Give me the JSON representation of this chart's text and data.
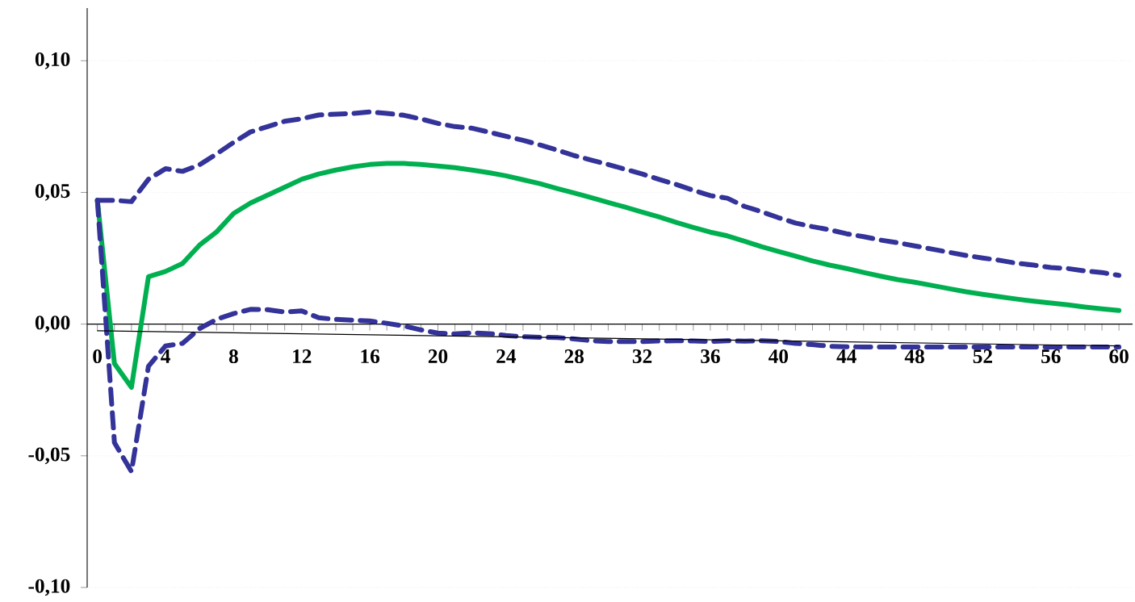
{
  "chart_data": {
    "type": "line",
    "x": [
      0,
      1,
      2,
      3,
      4,
      5,
      6,
      7,
      8,
      9,
      10,
      11,
      12,
      13,
      14,
      15,
      16,
      17,
      18,
      19,
      20,
      21,
      22,
      23,
      24,
      25,
      26,
      27,
      28,
      29,
      30,
      31,
      32,
      33,
      34,
      35,
      36,
      37,
      38,
      39,
      40,
      41,
      42,
      43,
      44,
      45,
      46,
      47,
      48,
      49,
      50,
      51,
      52,
      53,
      54,
      55,
      56,
      57,
      58,
      59,
      60
    ],
    "series": [
      {
        "color": "#00b050",
        "line_style": "solid",
        "values": [
          0.047,
          -0.015,
          -0.024,
          0.018,
          0.02,
          0.023,
          0.03,
          0.035,
          0.042,
          0.046,
          0.049,
          0.052,
          0.055,
          0.057,
          0.0585,
          0.0597,
          0.0606,
          0.061,
          0.061,
          0.0606,
          0.06,
          0.0594,
          0.0585,
          0.0575,
          0.0563,
          0.0548,
          0.0533,
          0.0515,
          0.0498,
          0.048,
          0.0462,
          0.0444,
          0.0425,
          0.0407,
          0.0386,
          0.0367,
          0.0349,
          0.0335,
          0.0315,
          0.0294,
          0.0276,
          0.0258,
          0.024,
          0.0224,
          0.0211,
          0.0196,
          0.0182,
          0.0169,
          0.0159,
          0.0147,
          0.0135,
          0.0123,
          0.0113,
          0.0104,
          0.0095,
          0.0087,
          0.008,
          0.0073,
          0.0065,
          0.0058,
          0.0052
        ]
      },
      {
        "color": "#333399",
        "line_style": "dashed",
        "values": [
          0.047,
          0.047,
          0.0465,
          0.055,
          0.059,
          0.058,
          0.0605,
          0.0646,
          0.069,
          0.073,
          0.075,
          0.077,
          0.078,
          0.0794,
          0.0797,
          0.08,
          0.0806,
          0.08,
          0.0793,
          0.0779,
          0.0762,
          0.075,
          0.0744,
          0.0729,
          0.0713,
          0.0698,
          0.068,
          0.0661,
          0.064,
          0.0623,
          0.0606,
          0.0588,
          0.057,
          0.0549,
          0.053,
          0.0508,
          0.0488,
          0.0478,
          0.0447,
          0.0427,
          0.0404,
          0.0384,
          0.037,
          0.0358,
          0.0343,
          0.0332,
          0.0319,
          0.0309,
          0.0297,
          0.0285,
          0.0273,
          0.0261,
          0.0251,
          0.0242,
          0.0231,
          0.0224,
          0.0215,
          0.0211,
          0.0202,
          0.0196,
          0.0185
        ]
      },
      {
        "color": "#333399",
        "line_style": "dashed",
        "values": [
          0.047,
          -0.045,
          -0.056,
          -0.016,
          -0.0083,
          -0.0073,
          -0.0017,
          0.0018,
          0.004,
          0.0056,
          0.0055,
          0.0046,
          0.005,
          0.0024,
          0.0018,
          0.0015,
          0.0012,
          0.0003,
          -0.0007,
          -0.0022,
          -0.0034,
          -0.0037,
          -0.0033,
          -0.0036,
          -0.0043,
          -0.0048,
          -0.005,
          -0.0051,
          -0.0056,
          -0.0063,
          -0.0066,
          -0.0066,
          -0.0066,
          -0.0064,
          -0.0063,
          -0.0064,
          -0.0066,
          -0.0063,
          -0.0065,
          -0.0063,
          -0.0066,
          -0.0073,
          -0.0078,
          -0.0084,
          -0.0086,
          -0.0087,
          -0.0087,
          -0.0087,
          -0.0087,
          -0.0087,
          -0.0087,
          -0.0087,
          -0.0087,
          -0.0087,
          -0.0087,
          -0.0087,
          -0.0087,
          -0.0087,
          -0.0087,
          -0.0087,
          -0.0087
        ]
      },
      {
        "color": "#000000",
        "line_style": "solid",
        "x": [
          0,
          60
        ],
        "values": [
          -0.0025,
          -0.0083
        ]
      }
    ],
    "xlim": [
      -0.6,
      60.8
    ],
    "ylim": [
      -0.1,
      0.12
    ],
    "xticks": [
      0,
      4,
      8,
      12,
      16,
      20,
      24,
      28,
      32,
      36,
      40,
      44,
      48,
      52,
      56,
      60
    ],
    "yticks": [
      {
        "value": -0.1,
        "label": "-0,10"
      },
      {
        "value": -0.05,
        "label": "-0,05"
      },
      {
        "value": 0,
        "label": "0,00"
      },
      {
        "value": 0.05,
        "label": "0,05"
      },
      {
        "value": 0.1,
        "label": "0,10"
      }
    ],
    "grid": "y",
    "marker": "none"
  }
}
